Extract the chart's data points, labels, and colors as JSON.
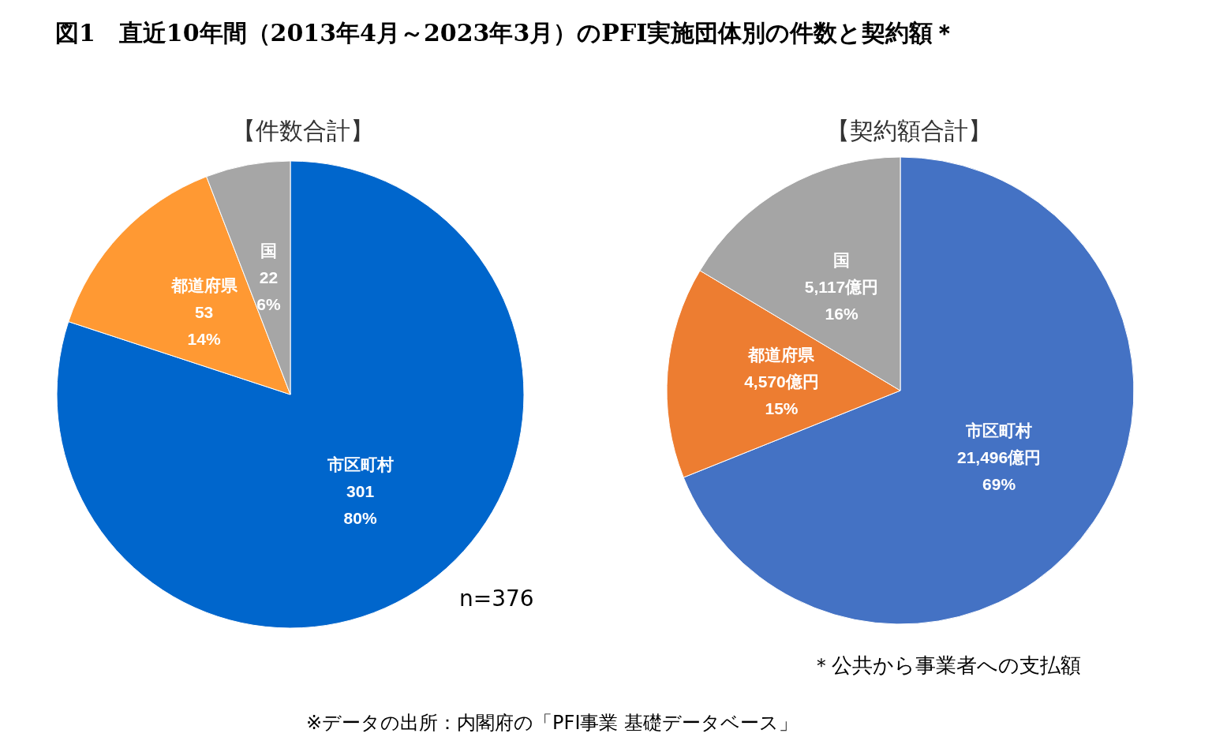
{
  "chart_data": [
    {
      "type": "pie",
      "title": "図1　直近10年間（2013年4月～2023年3月）のPFI実施団体別の件数と契約額＊",
      "subtitle": "【件数合計】",
      "categories": [
        "市区町村",
        "都道府県",
        "国"
      ],
      "values": [
        301,
        53,
        22
      ],
      "colors": [
        "#0066cc",
        "#ff9933",
        "#a6a6a6"
      ],
      "value_labels": [
        "301\n80%",
        "53\n14%",
        "22\n6%"
      ],
      "annotations": [
        "n=376"
      ]
    },
    {
      "type": "pie",
      "subtitle": "【契約額合計】",
      "categories": [
        "市区町村",
        "都道府県",
        "国"
      ],
      "values": [
        21496,
        4570,
        5117
      ],
      "colors": [
        "#4472c4",
        "#ed7d31",
        "#a5a5a5"
      ],
      "value_labels": [
        "21,496億円\n69%",
        "4,570億円\n15%",
        "5,117億円\n16%"
      ],
      "annotations": [
        "＊公共から事業者への支払額",
        "※データの出所：内閣府の「PFI事業 基礎データベース」"
      ]
    }
  ]
}
